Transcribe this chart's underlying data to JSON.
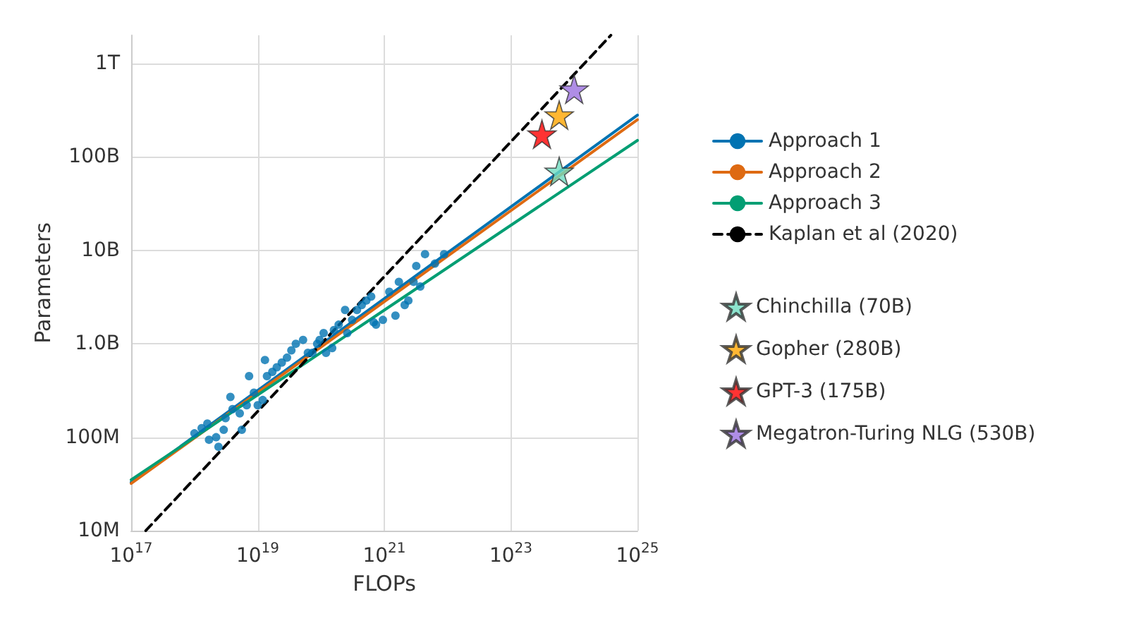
{
  "chart_data": {
    "type": "scatter",
    "xlabel": "FLOPs",
    "ylabel": "Parameters",
    "log": "xy",
    "grid": true,
    "legend": "right",
    "xlim": [
      1e+17,
      1e+25
    ],
    "ylim": [
      10000000.0,
      2000000000000.0
    ],
    "xticks": [
      {
        "value": 1e+17,
        "label": "10$^{17}$"
      },
      {
        "value": 1e+19,
        "label": "10$^{19}$"
      },
      {
        "value": 1e+21,
        "label": "10$^{21}$"
      },
      {
        "value": 1e+23,
        "label": "10$^{23}$"
      },
      {
        "value": 1e+25,
        "label": "10$^{25}$"
      }
    ],
    "yticks": [
      {
        "value": 10000000.0,
        "label": "10M"
      },
      {
        "value": 100000000.0,
        "label": "100M"
      },
      {
        "value": 1000000000.0,
        "label": "1.0B"
      },
      {
        "value": 10000000000.0,
        "label": "10B"
      },
      {
        "value": 100000000000.0,
        "label": "100B"
      },
      {
        "value": 1000000000000.0,
        "label": "1T"
      }
    ],
    "series": [
      {
        "marker": "circle",
        "color": "#0173b2",
        "x": [
          1e+18,
          1.3e+18,
          1.6e+18,
          1.7e+18,
          2.2e+18,
          2.4e+18,
          2.9e+18,
          3.1e+18,
          3.7e+18,
          4e+18,
          5.2e+18,
          5.6e+18,
          6.7e+18,
          7.3e+18,
          8.7e+18,
          1e+19,
          1.2e+19,
          1.3e+19,
          1.4e+19,
          1.7e+19,
          2e+19,
          2.4e+19,
          2.9e+19,
          3.4e+19,
          4e+19,
          5.2e+19,
          6.2e+19,
          7.3e+19,
          8.7e+19,
          9.5e+19,
          1.1e+20,
          1.2e+20,
          1.5e+20,
          1.6e+20,
          1.9e+20,
          2.4e+20,
          2.6e+20,
          3.1e+20,
          3.7e+20,
          4.4e+20,
          5.2e+20,
          6.2e+20,
          6.8e+20,
          7.4e+20,
          9.5e+20,
          1.2e+21,
          1.5e+21,
          1.7e+21,
          2.1e+21,
          2.4e+21,
          2.9e+21,
          3.2e+21,
          3.7e+21,
          4.4e+21,
          6.3e+21,
          8.8e+21
        ],
        "values": [
          110000000.0,
          125000000.0,
          140000000.0,
          94000000.0,
          100000000.0,
          79000000.0,
          120000000.0,
          160000000.0,
          270000000.0,
          200000000.0,
          180000000.0,
          120000000.0,
          220000000.0,
          450000000.0,
          300000000.0,
          220000000.0,
          250000000.0,
          670000000.0,
          450000000.0,
          500000000.0,
          560000000.0,
          630000000.0,
          710000000.0,
          850000000.0,
          1000000000.0,
          1100000000.0,
          800000000.0,
          800000000.0,
          1000000000.0,
          1100000000.0,
          1300000000.0,
          800000000.0,
          900000000.0,
          1400000000.0,
          1600000000.0,
          2300000000.0,
          1300000000.0,
          1800000000.0,
          2300000000.0,
          2600000000.0,
          2900000000.0,
          3200000000.0,
          1700000000.0,
          1600000000.0,
          1800000000.0,
          3600000000.0,
          2000000000.0,
          4600000000.0,
          2600000000.0,
          2900000000.0,
          4600000000.0,
          6800000000.0,
          4100000000.0,
          9100000000.0,
          7200000000.0,
          9100000000.0
        ]
      },
      {
        "type": "line",
        "name": "Approach 1",
        "color": "#0173b2",
        "marker": "none",
        "line_style": "solid",
        "x": [
          1e+17,
          1e+25
        ],
        "values": [
          33000000.0,
          280000000000.0
        ]
      },
      {
        "type": "line",
        "name": "Approach 2",
        "color": "#de6a12",
        "marker": "none",
        "line_style": "solid",
        "x": [
          1e+17,
          1e+25
        ],
        "values": [
          32000000.0,
          250000000000.0
        ]
      },
      {
        "type": "line",
        "name": "Approach 3",
        "color": "#029e73",
        "marker": "none",
        "line_style": "solid",
        "x": [
          1e+17,
          1e+25
        ],
        "values": [
          35000000.0,
          150000000000.0
        ]
      },
      {
        "type": "line",
        "name": "Kaplan et al (2020)",
        "color": "#000000",
        "marker": "none",
        "line_style": "dashed",
        "x": [
          1.7e+17,
          3.8e+24
        ],
        "values": [
          10000000.0,
          2000000000000.0
        ]
      },
      {
        "name": "Chinchilla (70B)",
        "color": "#6fdcc0",
        "marker": "star",
        "x": [
          5.8e+23
        ],
        "values": [
          70000000000.0
        ]
      },
      {
        "name": "Gopher (280B)",
        "color": "#ffa500",
        "marker": "star",
        "x": [
          5.8e+23
        ],
        "values": [
          280000000000.0
        ]
      },
      {
        "name": "GPT-3 (175B)",
        "color": "#ff0000",
        "marker": "star",
        "x": [
          3.1e+23
        ],
        "values": [
          175000000000.0
        ]
      },
      {
        "name": "Megatron-Turing NLG (530B)",
        "color": "#9b70e0",
        "marker": "star",
        "x": [
          1e+24
        ],
        "values": [
          530000000000.0
        ]
      }
    ]
  }
}
